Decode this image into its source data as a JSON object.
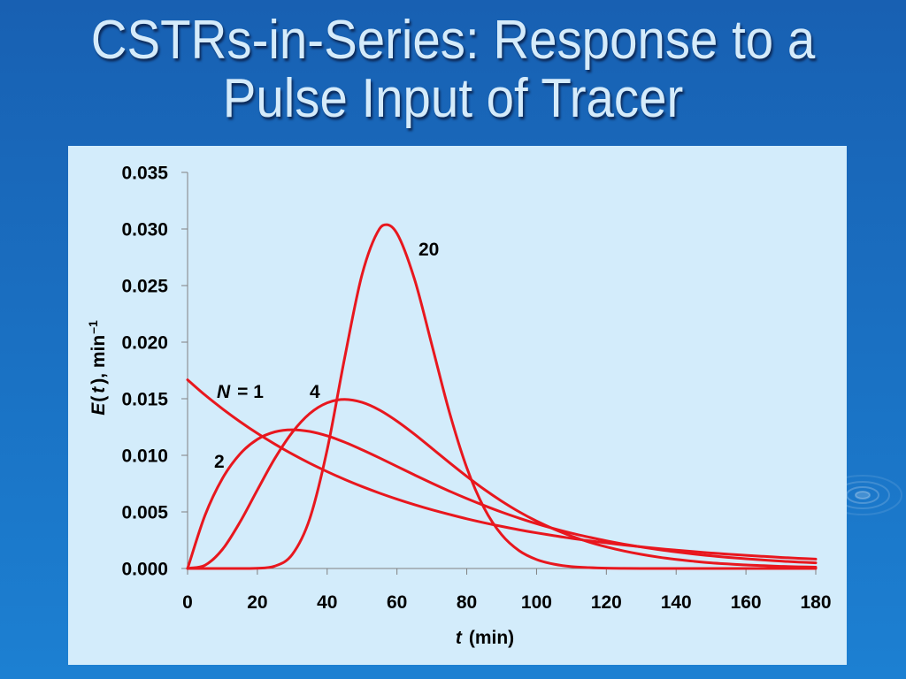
{
  "slide": {
    "title_line1": "CSTRs-in-Series: Response to a",
    "title_line2": "Pulse Input of Tracer"
  },
  "colors": {
    "background_top": "#1860b2",
    "background_bottom": "#1c80d2",
    "title_text": "#d5ebfa",
    "panel": "#d3ecfb",
    "curve": "#e8171e",
    "axis": "#808080"
  },
  "chart_data": {
    "type": "line",
    "xlabel": {
      "var": "t",
      "unit": "(min)"
    },
    "ylabel": {
      "func": "E",
      "open": "(",
      "var": "t",
      "close": "), min",
      "exponent": "–1"
    },
    "xlim": [
      0,
      180
    ],
    "ylim": [
      0,
      0.035
    ],
    "xtick_labels": [
      "0",
      "20",
      "40",
      "60",
      "80",
      "100",
      "120",
      "140",
      "160",
      "180"
    ],
    "ytick_labels": [
      "0.000",
      "0.005",
      "0.010",
      "0.015",
      "0.020",
      "0.025",
      "0.030",
      "0.035"
    ],
    "grid": false,
    "series": [
      {
        "label": {
          "var": "N",
          "text": "= 1"
        },
        "x": [
          0,
          5,
          10,
          15,
          20,
          25,
          30,
          35,
          40,
          45,
          50,
          55,
          60,
          65,
          70,
          75,
          80,
          85,
          90,
          95,
          100,
          105,
          110,
          115,
          120,
          125,
          130,
          135,
          140,
          145,
          150,
          155,
          160,
          165,
          170,
          175,
          180
        ],
        "y": [
          0.01667,
          0.01533,
          0.01411,
          0.01298,
          0.01194,
          0.01099,
          0.01011,
          0.0093,
          0.00856,
          0.00787,
          0.00724,
          0.00666,
          0.00613,
          0.00564,
          0.00519,
          0.00478,
          0.00439,
          0.00404,
          0.00372,
          0.00342,
          0.00315,
          0.0029,
          0.00266,
          0.00245,
          0.00226,
          0.00208,
          0.00191,
          0.00176,
          0.00162,
          0.00149,
          0.00137,
          0.00126,
          0.00116,
          0.00107,
          0.00098,
          0.0009,
          0.00083
        ]
      },
      {
        "label": {
          "text": "2"
        },
        "x": [
          0,
          5,
          10,
          15,
          20,
          25,
          30,
          35,
          40,
          45,
          50,
          55,
          60,
          65,
          70,
          75,
          80,
          85,
          90,
          95,
          100,
          105,
          110,
          115,
          120,
          125,
          130,
          135,
          140,
          145,
          150,
          155,
          160,
          165,
          170,
          175,
          180
        ],
        "y": [
          0,
          0.0047,
          0.00796,
          0.01011,
          0.01141,
          0.01207,
          0.01226,
          0.01211,
          0.01172,
          0.01116,
          0.01049,
          0.00977,
          0.00902,
          0.00827,
          0.00754,
          0.00684,
          0.00618,
          0.00556,
          0.00498,
          0.00445,
          0.00396,
          0.00352,
          0.00312,
          0.00277,
          0.00244,
          0.00215,
          0.0019,
          0.00167,
          0.00146,
          0.00128,
          0.00112,
          0.00098,
          0.00086,
          0.00075,
          0.00065,
          0.00057,
          0.0005
        ]
      },
      {
        "label": {
          "text": "4"
        },
        "x": [
          0,
          5,
          10,
          15,
          20,
          25,
          30,
          35,
          40,
          45,
          50,
          55,
          60,
          65,
          70,
          75,
          80,
          85,
          90,
          95,
          100,
          105,
          110,
          115,
          120,
          125,
          130,
          135,
          140,
          145,
          150,
          155,
          160,
          165,
          170,
          175,
          180
        ],
        "y": [
          0,
          0.00029,
          0.00169,
          0.00409,
          0.00694,
          0.00972,
          0.01203,
          0.01369,
          0.01464,
          0.01494,
          0.01468,
          0.014,
          0.01302,
          0.01187,
          0.01062,
          0.00936,
          0.00814,
          0.00699,
          0.00595,
          0.00501,
          0.00419,
          0.00348,
          0.00286,
          0.00234,
          0.00191,
          0.00155,
          0.00125,
          0.001,
          0.0008,
          0.00064,
          0.0005,
          0.0004,
          0.00031,
          0.00025,
          0.00019,
          0.00015,
          0.00012
        ]
      },
      {
        "label": {
          "text": "20"
        },
        "x": [
          0,
          5,
          10,
          15,
          20,
          25,
          30,
          35,
          40,
          45,
          50,
          55,
          57,
          60,
          65,
          70,
          75,
          80,
          85,
          90,
          95,
          100,
          105,
          110,
          115,
          120,
          125,
          130,
          135,
          140,
          145,
          150,
          155,
          160,
          165,
          170,
          175,
          180
        ],
        "y": [
          0,
          0,
          0,
          0,
          2e-05,
          0.00021,
          0.00124,
          0.00439,
          0.01049,
          0.01859,
          0.02598,
          0.03002,
          0.03038,
          0.02961,
          0.02559,
          0.01976,
          0.01384,
          0.00891,
          0.00533,
          0.00298,
          0.00157,
          0.00079,
          0.00038,
          0.00017,
          8e-05,
          3e-05,
          1e-05,
          0,
          0,
          0,
          0,
          0,
          0,
          0,
          0,
          0,
          0,
          0
        ]
      }
    ]
  }
}
